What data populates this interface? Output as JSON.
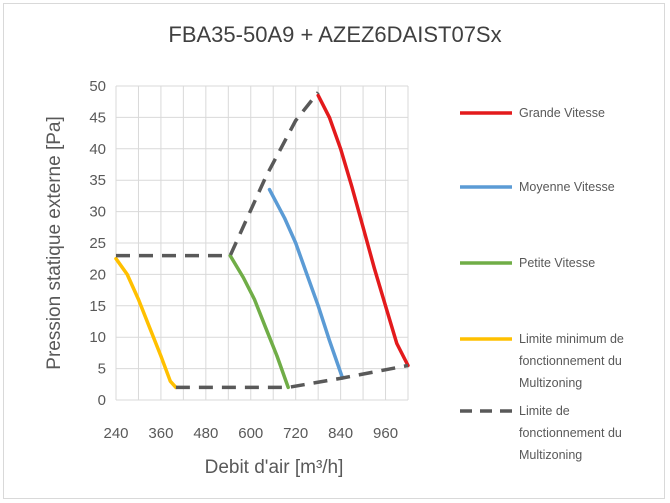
{
  "chart_data": {
    "type": "line",
    "title": "FBA35-50A9 + AZEZ6DAIST07Sx",
    "xlabel": "Debit d'air [m³/h]",
    "ylabel": "Pression statique externe [Pa]",
    "xlim": [
      240,
      1020
    ],
    "ylim": [
      0,
      50
    ],
    "x_ticks": [
      240,
      360,
      480,
      600,
      720,
      840,
      960
    ],
    "y_ticks": [
      0,
      5,
      10,
      15,
      20,
      25,
      30,
      35,
      40,
      45,
      50
    ],
    "grid": true,
    "legend_position": "right",
    "series": [
      {
        "name": "Grande Vitesse",
        "color": "#e31a1c",
        "style": "solid",
        "points": [
          [
            780,
            48.5
          ],
          [
            810,
            45
          ],
          [
            840,
            40
          ],
          [
            870,
            34
          ],
          [
            900,
            27.5
          ],
          [
            930,
            21
          ],
          [
            960,
            15
          ],
          [
            990,
            9
          ],
          [
            1020,
            5.5
          ]
        ]
      },
      {
        "name": "Moyenne Vitesse",
        "color": "#5b9bd5",
        "style": "solid",
        "points": [
          [
            650,
            33.5
          ],
          [
            690,
            29
          ],
          [
            720,
            25
          ],
          [
            750,
            20
          ],
          [
            780,
            15
          ],
          [
            810,
            9.5
          ],
          [
            845,
            3.5
          ]
        ]
      },
      {
        "name": "Petite Vitesse",
        "color": "#70ad47",
        "style": "solid",
        "points": [
          [
            545,
            23
          ],
          [
            580,
            19.5
          ],
          [
            610,
            16
          ],
          [
            640,
            11.5
          ],
          [
            670,
            7
          ],
          [
            700,
            2
          ]
        ]
      },
      {
        "name": "Limite minimum de fonctionnement du Multizoning",
        "color": "#ffc000",
        "style": "solid",
        "points": [
          [
            240,
            22.5
          ],
          [
            270,
            20
          ],
          [
            300,
            16
          ],
          [
            330,
            11.5
          ],
          [
            360,
            7
          ],
          [
            385,
            3
          ],
          [
            400,
            2
          ]
        ]
      },
      {
        "name": "Limite de fonctionnement du Multizoning",
        "color": "#595959",
        "style": "dashed",
        "points": [
          [
            240,
            23
          ],
          [
            545,
            23
          ],
          [
            600,
            30
          ],
          [
            650,
            35.5
          ],
          [
            700,
            42
          ],
          [
            730,
            45.5
          ],
          [
            780,
            49
          ],
          [
            800,
            45
          ],
          [
            780,
            49
          ]
        ]
      }
    ],
    "dashed_bottom": [
      [
        400,
        2
      ],
      [
        700,
        2
      ],
      [
        845,
        3.5
      ],
      [
        1020,
        5.5
      ]
    ]
  },
  "legend_lines": [
    [
      "Grande Vitesse"
    ],
    [
      "Moyenne Vitesse"
    ],
    [
      "Petite Vitesse"
    ],
    [
      "Limite minimum de",
      "fonctionnement du",
      "Multizoning"
    ],
    [
      "Limite de",
      "fonctionnement du",
      "Multizoning"
    ]
  ]
}
